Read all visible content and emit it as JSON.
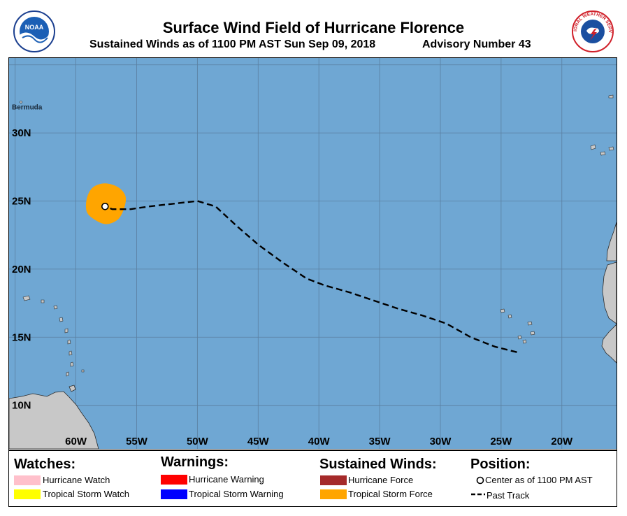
{
  "header": {
    "title": "Surface Wind Field of Hurricane Florence",
    "subtitle": "Sustained Winds as of 1100 PM AST Sun Sep 09, 2018",
    "advisory": "Advisory Number 43",
    "left_logo_text": "NOAA",
    "right_logo_text": "NATIONAL WEATHER SERVICE"
  },
  "map": {
    "ocean_color": "#6fa7d3",
    "land_color": "#c8c8c8",
    "lon_min": -65.5,
    "lon_max": -15.5,
    "lat_min": 6.8,
    "lat_max": 35.5,
    "lat_labels": [
      {
        "lat": 30,
        "text": "30N"
      },
      {
        "lat": 25,
        "text": "25N"
      },
      {
        "lat": 20,
        "text": "20N"
      },
      {
        "lat": 15,
        "text": "15N"
      },
      {
        "lat": 10,
        "text": "10N"
      }
    ],
    "lon_labels": [
      {
        "lon": -60,
        "text": "60W"
      },
      {
        "lon": -55,
        "text": "55W"
      },
      {
        "lon": -50,
        "text": "50W"
      },
      {
        "lon": -45,
        "text": "45W"
      },
      {
        "lon": -40,
        "text": "40W"
      },
      {
        "lon": -35,
        "text": "35W"
      },
      {
        "lon": -30,
        "text": "30W"
      },
      {
        "lon": -25,
        "text": "25W"
      },
      {
        "lon": -20,
        "text": "20W"
      }
    ],
    "places": [
      {
        "name": "Bermuda",
        "lon": -64.8,
        "lat": 32.3
      }
    ],
    "center": {
      "lon": -57.6,
      "lat": 24.6
    },
    "past_track": [
      [
        -23.7,
        13.9
      ],
      [
        -25.5,
        14.3
      ],
      [
        -27.5,
        15.0
      ],
      [
        -29.5,
        16.0
      ],
      [
        -31.5,
        16.6
      ],
      [
        -33.5,
        17.1
      ],
      [
        -35.5,
        17.7
      ],
      [
        -37.5,
        18.3
      ],
      [
        -39.5,
        18.8
      ],
      [
        -41.0,
        19.3
      ],
      [
        -43.0,
        20.5
      ],
      [
        -45.0,
        21.8
      ],
      [
        -46.8,
        23.2
      ],
      [
        -48.5,
        24.6
      ],
      [
        -50.0,
        25.0
      ],
      [
        -52.0,
        24.8
      ],
      [
        -54.0,
        24.6
      ],
      [
        -55.5,
        24.4
      ],
      [
        -57.0,
        24.4
      ],
      [
        -57.6,
        24.6
      ]
    ],
    "ts_wind_field": [
      [
        -59.1,
        25.2
      ],
      [
        -58.6,
        26.0
      ],
      [
        -57.6,
        26.3
      ],
      [
        -56.5,
        26.0
      ],
      [
        -55.9,
        25.3
      ],
      [
        -56.1,
        24.3
      ],
      [
        -56.6,
        23.6
      ],
      [
        -57.5,
        23.3
      ],
      [
        -58.4,
        23.6
      ],
      [
        -59.1,
        24.2
      ]
    ]
  },
  "legend": {
    "watches": {
      "heading": "Watches:",
      "items": [
        {
          "label": "Hurricane Watch",
          "color": "#ffc0cb"
        },
        {
          "label": "Tropical Storm Watch",
          "color": "#ffff00"
        }
      ]
    },
    "warnings": {
      "heading": "Warnings:",
      "items": [
        {
          "label": "Hurricane Warning",
          "color": "#ff0000"
        },
        {
          "label": "Tropical Storm Warning",
          "color": "#0000ff"
        }
      ]
    },
    "winds": {
      "heading": "Sustained Winds:",
      "items": [
        {
          "label": "Hurricane Force",
          "color": "#a52a2a"
        },
        {
          "label": "Tropical Storm Force",
          "color": "#ffa500"
        }
      ]
    },
    "position": {
      "heading": "Position:",
      "center_label": "Center as of 1100 PM AST",
      "track_label": "Past Track"
    }
  }
}
